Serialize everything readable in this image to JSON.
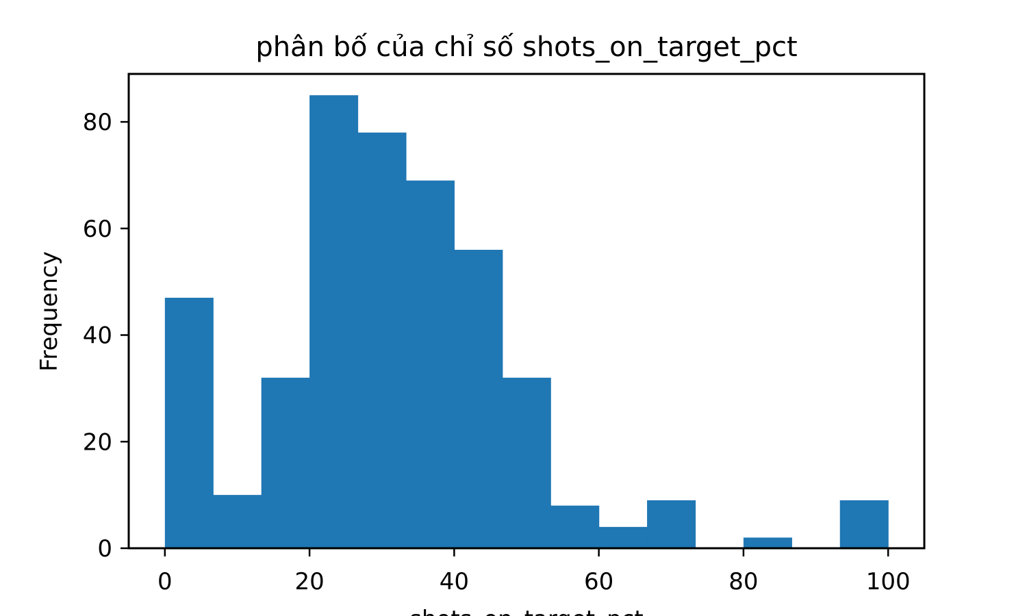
{
  "chart_data": {
    "type": "bar",
    "title": "phân bố của chỉ số shots_on_target_pct",
    "xlabel": "shots_on_target_pct",
    "ylabel": "Frequency",
    "xlim": [
      -5,
      105
    ],
    "ylim": [
      0,
      89
    ],
    "xticks": [
      0,
      20,
      40,
      60,
      80,
      100
    ],
    "yticks": [
      0,
      20,
      40,
      60,
      80
    ],
    "bin_edges": [
      0,
      6.667,
      13.333,
      20,
      26.667,
      33.333,
      40,
      46.667,
      53.333,
      60,
      66.667,
      73.333,
      80,
      86.667,
      93.333,
      100
    ],
    "values": [
      47,
      10,
      32,
      85,
      78,
      69,
      56,
      32,
      8,
      4,
      9,
      0,
      2,
      0,
      9
    ],
    "bar_color": "#1f77b4",
    "grid": false,
    "legend": "none"
  }
}
